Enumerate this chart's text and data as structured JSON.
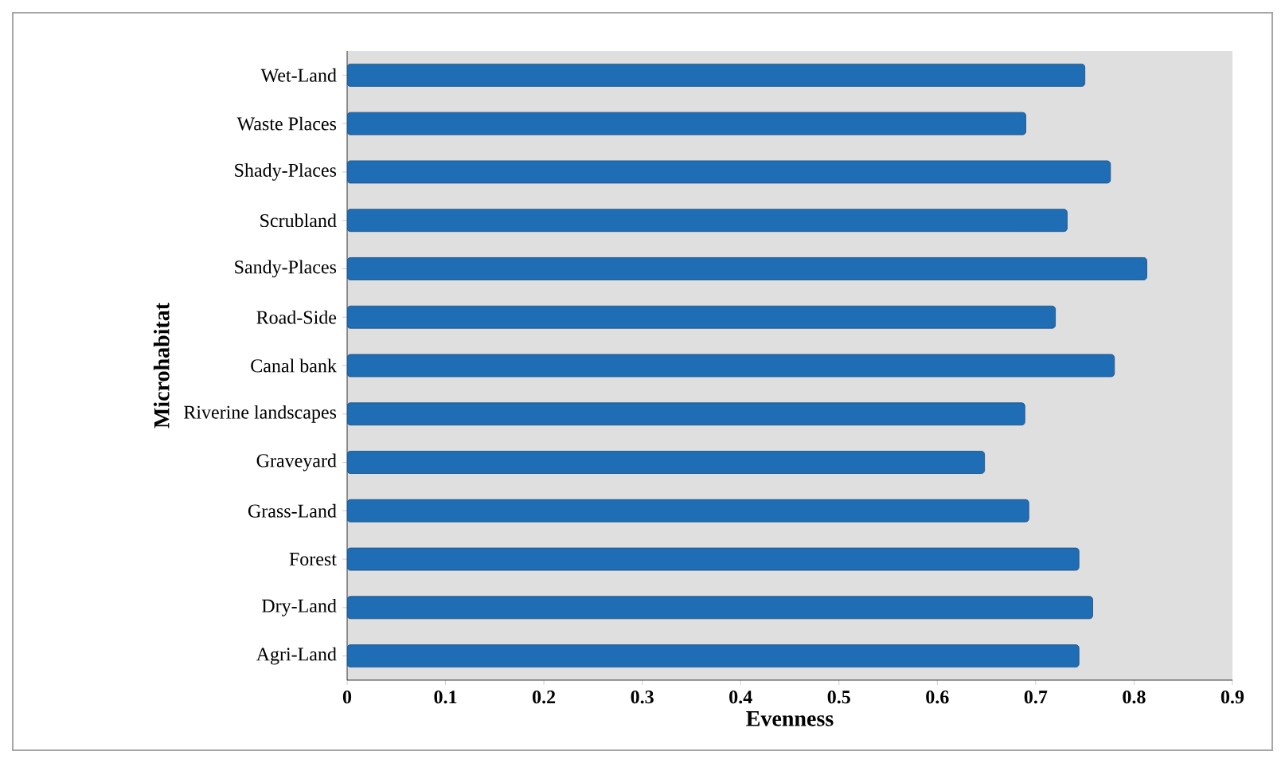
{
  "chart_data": {
    "type": "bar",
    "orientation": "horizontal",
    "xlabel": "Evenness",
    "ylabel": "Microhabitat",
    "categories": [
      "Wet-Land",
      "Waste Places",
      "Shady-Places",
      "Scrubland",
      "Sandy-Places",
      "Road-Side",
      "Canal bank",
      "Riverine landscapes",
      "Graveyard",
      "Grass-Land",
      "Forest",
      "Dry-Land",
      "Agri-Land"
    ],
    "values": [
      0.75,
      0.69,
      0.776,
      0.732,
      0.813,
      0.72,
      0.78,
      0.689,
      0.648,
      0.693,
      0.744,
      0.758,
      0.744
    ],
    "color": "#1f6db5",
    "xlim": [
      0,
      0.9
    ],
    "xticks": [
      0,
      0.1,
      0.2,
      0.3,
      0.4,
      0.5,
      0.6,
      0.7,
      0.8,
      0.9
    ]
  }
}
